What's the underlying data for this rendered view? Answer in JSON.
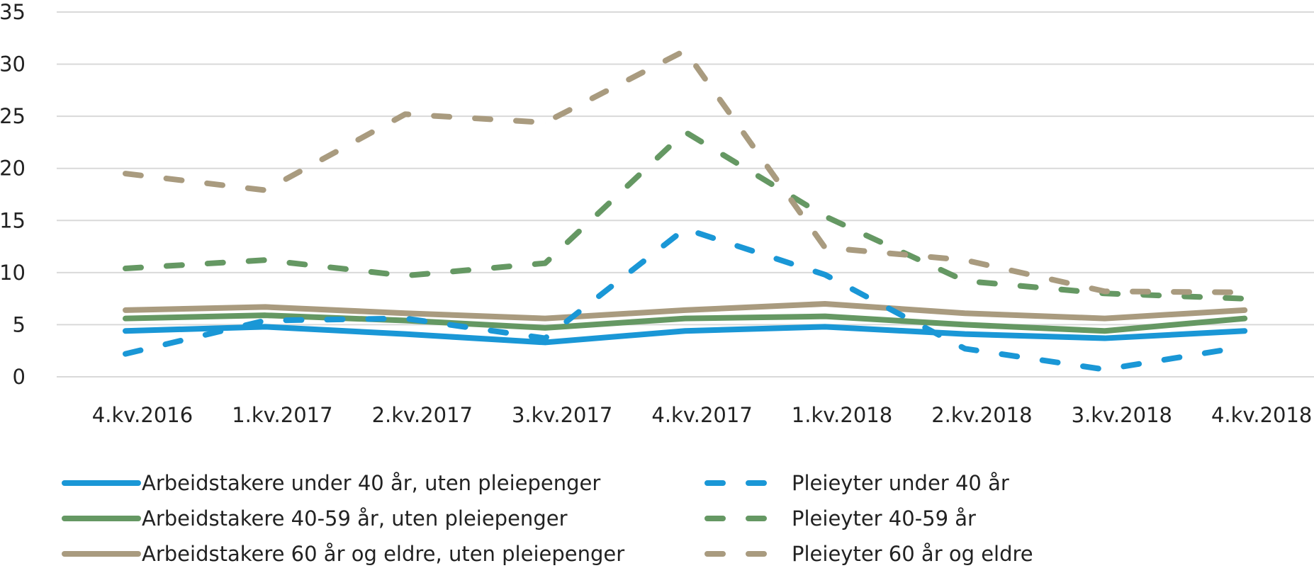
{
  "chart_data": {
    "type": "line",
    "title": "",
    "xlabel": "",
    "ylabel": "",
    "ylim": [
      0,
      35
    ],
    "yticks": [
      "0",
      "5",
      "10",
      "15",
      "20",
      "25",
      "30",
      "35"
    ],
    "ytick_values": [
      0,
      5,
      10,
      15,
      20,
      25,
      30,
      35
    ],
    "grid": true,
    "legend_position": "bottom",
    "categories": [
      "4.kv.2016",
      "1.kv.2017",
      "2.kv.2017",
      "3.kv.2017",
      "4.kv.2017",
      "1.kv.2018",
      "2.kv.2018",
      "3.kv.2018",
      "4.kv.2018"
    ],
    "series": [
      {
        "name": "Arbeidstakere under 40 år, uten pleiepenger",
        "color": "#1a97d6",
        "style": "solid",
        "values": [
          4.4,
          4.8,
          4.1,
          3.3,
          4.4,
          4.8,
          4.1,
          3.7,
          4.4
        ]
      },
      {
        "name": "Arbeidstakere 40-59 år, uten pleiepenger",
        "color": "#659863",
        "style": "solid",
        "values": [
          5.6,
          5.9,
          5.4,
          4.7,
          5.6,
          5.8,
          5.0,
          4.4,
          5.6
        ]
      },
      {
        "name": "Arbeidstakere 60 år og eldre, uten pleiepenger",
        "color": "#a99b7f",
        "style": "solid",
        "values": [
          6.4,
          6.7,
          6.1,
          5.6,
          6.4,
          7.0,
          6.1,
          5.6,
          6.4
        ]
      },
      {
        "name": "Pleieyter under 40 år",
        "color": "#1a97d6",
        "style": "dashed",
        "values": [
          2.2,
          5.4,
          5.6,
          3.7,
          14.2,
          9.8,
          2.7,
          0.7,
          2.9
        ]
      },
      {
        "name": "Pleieyter 40-59 år",
        "color": "#659863",
        "style": "dashed",
        "values": [
          10.4,
          11.2,
          9.7,
          10.9,
          23.5,
          15.4,
          9.2,
          8.0,
          7.5
        ]
      },
      {
        "name": "Pleieyter 60 år og eldre",
        "color": "#a99b7f",
        "style": "dashed",
        "values": [
          19.5,
          17.9,
          25.2,
          24.4,
          31.3,
          12.4,
          11.2,
          8.2,
          8.1
        ]
      }
    ]
  },
  "legend": {
    "items": [
      {
        "label": "Arbeidstakere under 40 år, uten pleiepenger",
        "color": "#1a97d6",
        "style": "solid"
      },
      {
        "label": "Arbeidstakere 40-59 år, uten pleiepenger",
        "color": "#659863",
        "style": "solid"
      },
      {
        "label": "Arbeidstakere 60 år og eldre, uten pleiepenger",
        "color": "#a99b7f",
        "style": "solid"
      },
      {
        "label": "Pleieyter under 40 år",
        "color": "#1a97d6",
        "style": "dashed"
      },
      {
        "label": "Pleieyter 40-59 år",
        "color": "#659863",
        "style": "dashed"
      },
      {
        "label": "Pleieyter 60 år og eldre",
        "color": "#a99b7f",
        "style": "dashed"
      }
    ]
  }
}
